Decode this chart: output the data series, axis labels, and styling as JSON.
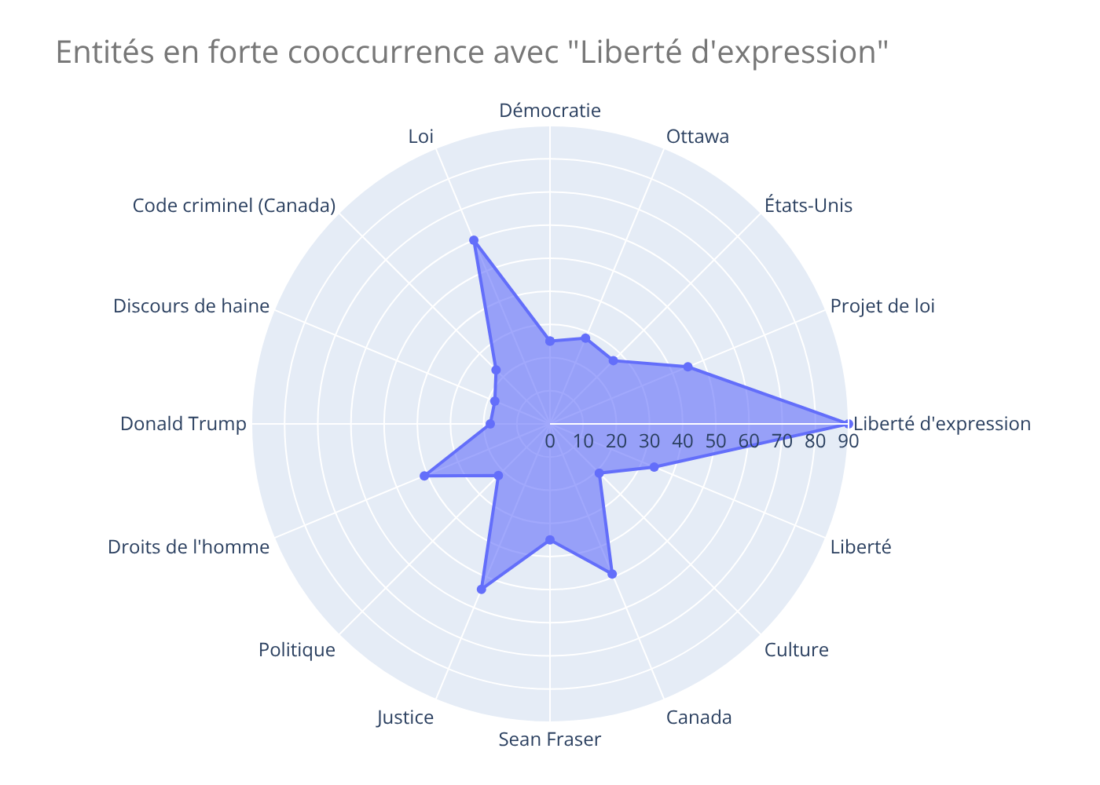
{
  "chart_data": {
    "type": "radar",
    "title": "Entités en forte cooccurrence avec \"Liberté d'expression\"",
    "categories": [
      "Démocratie",
      "Ottawa",
      "États-Unis",
      "Projet de loi",
      "Liberté d'expression",
      "Liberté",
      "Culture",
      "Canada",
      "Sean Fraser",
      "Justice",
      "Politique",
      "Droits de l'homme",
      "Donald Trump",
      "Discours de haine",
      "Code criminel (Canada)",
      "Loi"
    ],
    "series": [
      {
        "color": "#636efa",
        "values": [
          25,
          28,
          27,
          45,
          90,
          34,
          21,
          49,
          35,
          54,
          22,
          41,
          18,
          18,
          23,
          60
        ]
      }
    ],
    "ylim": [
      0,
      90
    ],
    "yticks": [
      0,
      10,
      20,
      30,
      40,
      50,
      60,
      70,
      80,
      90
    ],
    "grid": true,
    "marker": "circle"
  }
}
